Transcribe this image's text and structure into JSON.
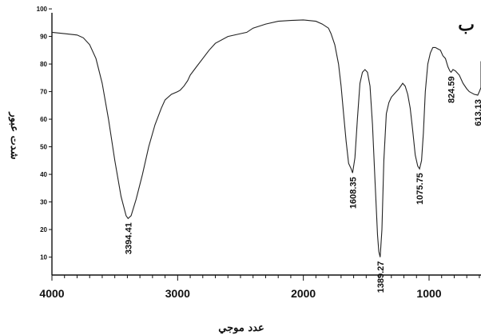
{
  "chart_data": {
    "type": "line",
    "panel_label": "ب",
    "xlabel": "عدد موجي",
    "ylabel": "شدت عبور",
    "xlim": [
      4000,
      400
    ],
    "ylim": [
      0,
      100
    ],
    "x_ticks": [
      4000,
      3000,
      2000,
      1000
    ],
    "x_tick_labels": [
      "4000",
      "3000",
      "2000",
      "1000"
    ],
    "y_ticks": [
      10,
      20,
      30,
      40,
      50,
      60,
      70,
      80,
      90,
      100
    ],
    "y_tick_labels": [
      "10",
      "20",
      "30",
      "40",
      "50",
      "60",
      "70",
      "80",
      "90",
      "100"
    ],
    "grid": false,
    "series": [
      {
        "x": [
          4000,
          3900,
          3800,
          3750,
          3700,
          3650,
          3600,
          3550,
          3500,
          3450,
          3410,
          3394.41,
          3370,
          3330,
          3280,
          3230,
          3180,
          3130,
          3100,
          3050,
          3000,
          2980,
          2950,
          2920,
          2900,
          2850,
          2800,
          2750,
          2700,
          2600,
          2500,
          2450,
          2400,
          2300,
          2200,
          2100,
          2000,
          1900,
          1850,
          1800,
          1780,
          1750,
          1720,
          1700,
          1680,
          1660,
          1640,
          1620,
          1608.35,
          1590,
          1570,
          1550,
          1530,
          1510,
          1490,
          1470,
          1450,
          1430,
          1410,
          1400,
          1389.27,
          1375,
          1360,
          1340,
          1320,
          1300,
          1270,
          1240,
          1210,
          1190,
          1170,
          1150,
          1130,
          1110,
          1090,
          1075.75,
          1060,
          1045,
          1030,
          1010,
          990,
          970,
          950,
          930,
          910,
          890,
          870,
          850,
          835,
          824.59,
          810,
          790,
          760,
          730,
          700,
          680,
          660,
          640,
          620,
          613.13,
          600,
          580,
          560,
          540,
          520,
          500,
          480,
          460,
          440,
          420,
          400
        ],
        "y": [
          91.5,
          91,
          90.5,
          89.5,
          87,
          82,
          73,
          60,
          45,
          32,
          25,
          24,
          25,
          31,
          40,
          50,
          58,
          64,
          67,
          69,
          70,
          70.5,
          72,
          74,
          76,
          79,
          82,
          85,
          87.5,
          90,
          91,
          91.5,
          93,
          94.5,
          95.5,
          95.8,
          96,
          95.5,
          94.5,
          93,
          91,
          87,
          80,
          72,
          62,
          52,
          44,
          42,
          40.5,
          46,
          60,
          73,
          77,
          78,
          77,
          72,
          58,
          38,
          18,
          12,
          10,
          20,
          45,
          62,
          66,
          68,
          69.5,
          71,
          73,
          72,
          69,
          64,
          56,
          47,
          43,
          42,
          45,
          55,
          70,
          80,
          84,
          86,
          86,
          85.5,
          85,
          83,
          82,
          79,
          77.5,
          77,
          78,
          77.5,
          76,
          73,
          71,
          70,
          69.5,
          69,
          68.8,
          68.7,
          70,
          71.5,
          73,
          74.5,
          74,
          73.5,
          74.5,
          76,
          78,
          80,
          81
        ]
      }
    ],
    "peaks": [
      {
        "x": 3394.41,
        "label": "3394.41"
      },
      {
        "x": 1608.35,
        "label": "1608.35"
      },
      {
        "x": 1389.27,
        "label": "1389.27"
      },
      {
        "x": 1075.75,
        "label": "1075.75"
      },
      {
        "x": 824.59,
        "label": "824.59"
      },
      {
        "x": 613.13,
        "label": "613.13"
      }
    ]
  }
}
